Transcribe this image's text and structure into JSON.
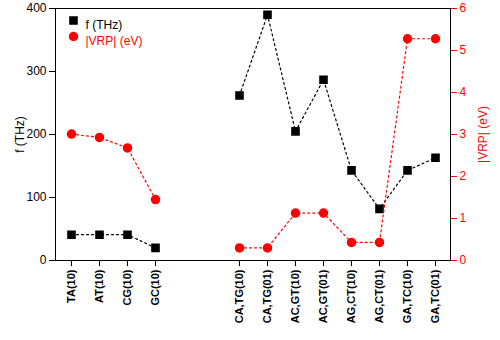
{
  "chart_data": {
    "type": "line",
    "categories": [
      "TA(10)",
      "AT(10)",
      "CG(10)",
      "GC(10)",
      null,
      null,
      "CA,TG(10)",
      "CA,TG(01)",
      "AC,GT(10)",
      "AC,GT(01)",
      "AG,CT(10)",
      "AG,CT(01)",
      "GA,TC(10)",
      "GA,TC(01)"
    ],
    "series": [
      {
        "name": "f (THz)",
        "color": "#000000",
        "marker": "square",
        "line_style": "dotted",
        "values": [
          41,
          41,
          41,
          20,
          null,
          null,
          262,
          390,
          205,
          287,
          143,
          82,
          143,
          163
        ]
      },
      {
        "name": "|VRP| (eV)",
        "color": "#ff0000",
        "marker": "circle",
        "line_style": "dotted",
        "axis": "y2",
        "values": [
          3.01,
          2.93,
          2.68,
          1.45,
          null,
          null,
          0.3,
          0.3,
          1.13,
          1.13,
          0.43,
          0.43,
          5.28,
          5.28
        ]
      }
    ],
    "y_label": "f (THz)",
    "y2_label": "|VRP| (eV)",
    "ylim": [
      0,
      400
    ],
    "yticks": [
      0,
      100,
      200,
      300,
      400
    ],
    "y2lim": [
      0,
      6
    ],
    "y2ticks": [
      0,
      1,
      2,
      3,
      4,
      5,
      6
    ],
    "legend": "top-left"
  }
}
